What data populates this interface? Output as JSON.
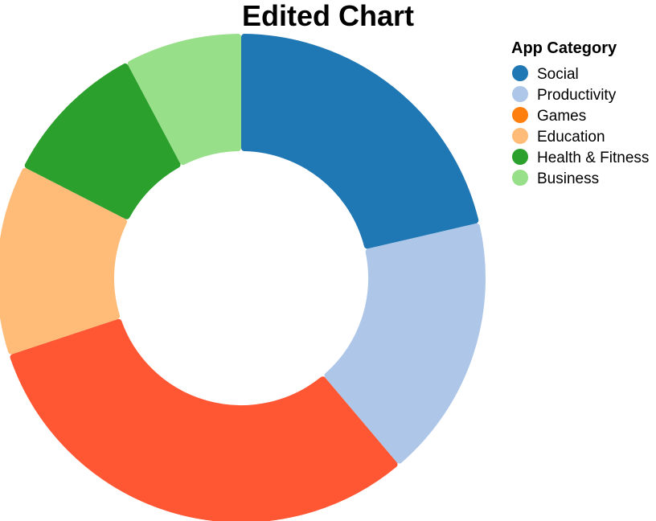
{
  "chart_data": {
    "type": "pie",
    "variant": "donut",
    "title": "Edited Chart",
    "legend": {
      "title": "App Category",
      "placement": "right"
    },
    "slices": [
      {
        "label": "Social",
        "value": 22,
        "color": "#1f77b4",
        "in_legend": true
      },
      {
        "label": "Productivity",
        "value": 18,
        "color": "#aec7e8",
        "in_legend": true
      },
      {
        "label": "",
        "value": 32,
        "color": "#ff5733",
        "in_legend": false
      },
      {
        "label": "Education",
        "value": 13,
        "color": "#ffbb78",
        "in_legend": true
      },
      {
        "label": "Health & Fitness",
        "value": 10,
        "color": "#2ca02c",
        "in_legend": true
      },
      {
        "label": "Business",
        "value": 8,
        "color": "#98df8a",
        "in_legend": true
      }
    ],
    "legend_entries": [
      {
        "label": "Social",
        "color": "#1f77b4"
      },
      {
        "label": "Productivity",
        "color": "#aec7e8"
      },
      {
        "label": "Games",
        "color": "#ff7f0e"
      },
      {
        "label": "Education",
        "color": "#ffbb78"
      },
      {
        "label": "Health & Fitness",
        "color": "#2ca02c"
      },
      {
        "label": "Business",
        "color": "#98df8a"
      }
    ]
  }
}
